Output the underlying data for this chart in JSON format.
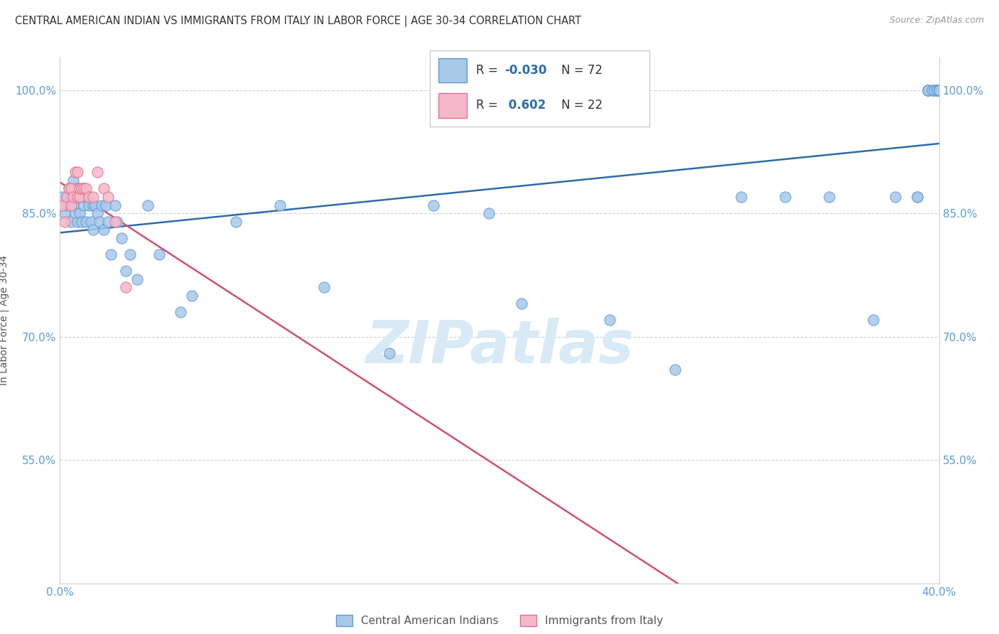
{
  "title": "CENTRAL AMERICAN INDIAN VS IMMIGRANTS FROM ITALY IN LABOR FORCE | AGE 30-34 CORRELATION CHART",
  "source": "Source: ZipAtlas.com",
  "ylabel": "In Labor Force | Age 30-34",
  "xlim": [
    0.0,
    0.4
  ],
  "ylim": [
    0.4,
    1.04
  ],
  "yticks": [
    0.55,
    0.7,
    0.85,
    1.0
  ],
  "yticklabels": [
    "55.0%",
    "70.0%",
    "85.0%",
    "100.0%"
  ],
  "xticks": [
    0.0,
    0.4
  ],
  "xticklabels": [
    "0.0%",
    "40.0%"
  ],
  "blue_scatter_x": [
    0.001,
    0.002,
    0.003,
    0.004,
    0.005,
    0.005,
    0.006,
    0.006,
    0.007,
    0.008,
    0.008,
    0.009,
    0.009,
    0.01,
    0.01,
    0.011,
    0.011,
    0.012,
    0.012,
    0.013,
    0.014,
    0.015,
    0.015,
    0.016,
    0.017,
    0.018,
    0.019,
    0.02,
    0.021,
    0.022,
    0.023,
    0.025,
    0.026,
    0.028,
    0.03,
    0.032,
    0.035,
    0.04,
    0.045,
    0.055,
    0.06,
    0.08,
    0.1,
    0.12,
    0.15,
    0.17,
    0.195,
    0.21,
    0.25,
    0.28,
    0.31,
    0.33,
    0.35,
    0.37,
    0.38,
    0.39,
    0.39,
    0.395,
    0.395,
    0.395,
    0.395,
    0.397,
    0.398,
    0.398,
    0.399,
    0.399,
    0.399,
    0.4,
    0.4,
    0.4,
    0.4,
    0.4
  ],
  "blue_scatter_y": [
    0.87,
    0.85,
    0.86,
    0.88,
    0.84,
    0.87,
    0.86,
    0.89,
    0.85,
    0.84,
    0.88,
    0.85,
    0.87,
    0.84,
    0.87,
    0.86,
    0.88,
    0.84,
    0.87,
    0.86,
    0.84,
    0.83,
    0.86,
    0.86,
    0.85,
    0.84,
    0.86,
    0.83,
    0.86,
    0.84,
    0.8,
    0.86,
    0.84,
    0.82,
    0.78,
    0.8,
    0.77,
    0.86,
    0.8,
    0.73,
    0.75,
    0.84,
    0.86,
    0.76,
    0.68,
    0.86,
    0.85,
    0.74,
    0.72,
    0.66,
    0.87,
    0.87,
    0.87,
    0.72,
    0.87,
    0.87,
    0.87,
    1.0,
    1.0,
    1.0,
    1.0,
    1.0,
    1.0,
    1.0,
    1.0,
    1.0,
    1.0,
    1.0,
    1.0,
    1.0,
    1.0,
    1.0
  ],
  "pink_scatter_x": [
    0.001,
    0.002,
    0.003,
    0.004,
    0.005,
    0.005,
    0.006,
    0.007,
    0.008,
    0.008,
    0.009,
    0.009,
    0.01,
    0.011,
    0.012,
    0.013,
    0.015,
    0.017,
    0.02,
    0.022,
    0.025,
    0.03
  ],
  "pink_scatter_y": [
    0.86,
    0.84,
    0.87,
    0.88,
    0.86,
    0.88,
    0.87,
    0.9,
    0.87,
    0.9,
    0.87,
    0.88,
    0.88,
    0.88,
    0.88,
    0.87,
    0.87,
    0.9,
    0.88,
    0.87,
    0.84,
    0.76
  ],
  "blue_R": -0.03,
  "blue_N": 72,
  "pink_R": 0.602,
  "pink_N": 22,
  "blue_dot_color": "#a8c8e8",
  "blue_dot_edge": "#5b9bd5",
  "pink_dot_color": "#f5b8c8",
  "pink_dot_edge": "#e07090",
  "blue_line_color": "#2e6baa",
  "pink_line_color": "#d05070",
  "tick_color": "#5b9bd5",
  "grid_color": "#d0d0d0",
  "watermark_color": "#d8eaf5",
  "legend_label_blue": "Central American Indians",
  "legend_label_pink": "Immigrants from Italy"
}
